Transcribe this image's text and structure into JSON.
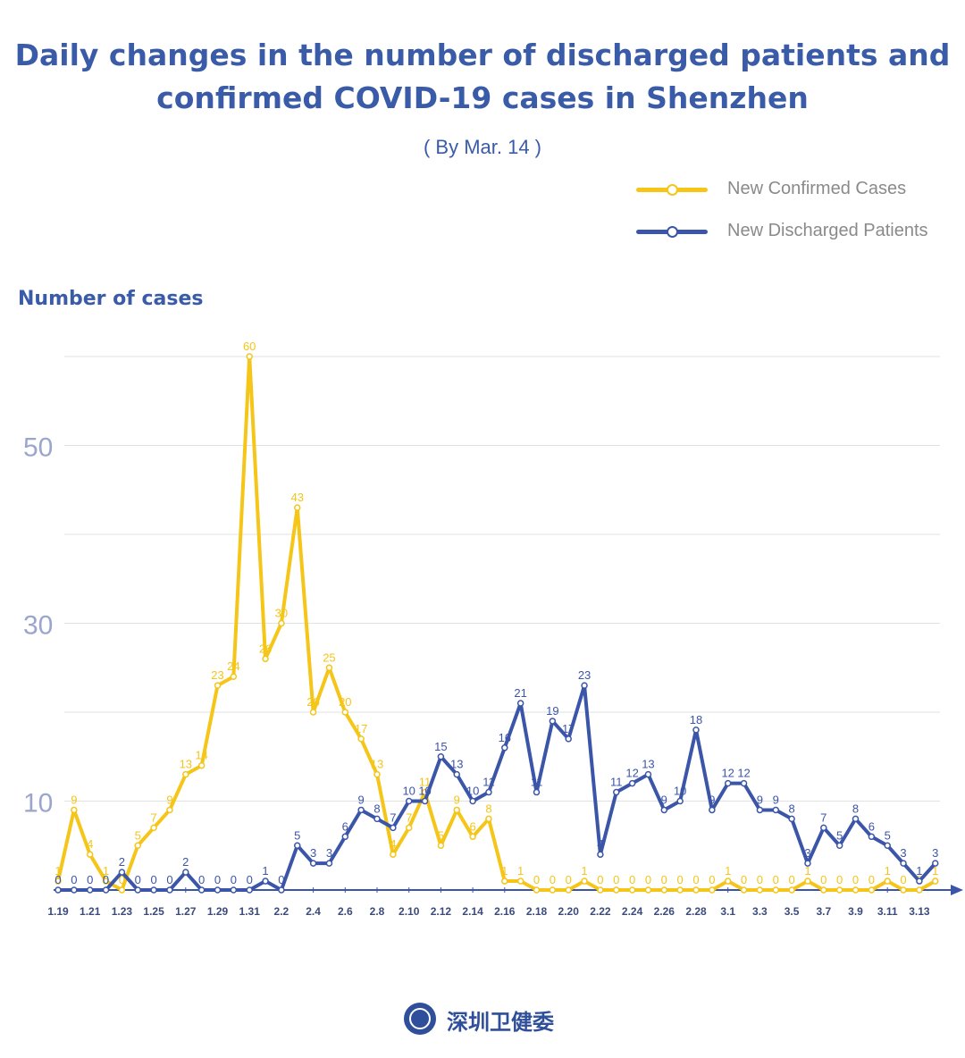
{
  "title_line1": "Daily changes in the number of discharged patients and",
  "title_line2": "confirmed COVID-19 cases in Shenzhen",
  "subtitle": "( By Mar. 14 )",
  "footer_text": "深圳卫健委",
  "colors": {
    "confirmed": "#f5c518",
    "discharged": "#3b55a8",
    "title": "#3a5ba8",
    "ytick": "#9aa6cc",
    "grid": "#e2e2e2"
  },
  "chart_data": {
    "type": "line",
    "ylabel": "Number of cases",
    "xlabel": "",
    "ylim": [
      0,
      60
    ],
    "y_ticks_shown": [
      10,
      30,
      50
    ],
    "grid": true,
    "legend_position": "top-right",
    "x": [
      "1.19",
      "1.20",
      "1.21",
      "1.22",
      "1.23",
      "1.24",
      "1.25",
      "1.26",
      "1.27",
      "1.28",
      "1.29",
      "1.30",
      "1.31",
      "2.1",
      "2.2",
      "2.3",
      "2.4",
      "2.5",
      "2.6",
      "2.7",
      "2.8",
      "2.9",
      "2.10",
      "2.11",
      "2.12",
      "2.13",
      "2.14",
      "2.15",
      "2.16",
      "2.17",
      "2.18",
      "2.19",
      "2.20",
      "2.21",
      "2.22",
      "2.23",
      "2.24",
      "2.25",
      "2.26",
      "2.27",
      "2.28",
      "2.29",
      "3.1",
      "3.2",
      "3.3",
      "3.4",
      "3.5",
      "3.6",
      "3.7",
      "3.8",
      "3.9",
      "3.10",
      "3.11",
      "3.12",
      "3.13",
      "3.14"
    ],
    "x_tick_labels": [
      "1.19",
      "1.21",
      "1.23",
      "1.25",
      "1.27",
      "1.29",
      "1.31",
      "2.2",
      "2.4",
      "2.6",
      "2.8",
      "2.10",
      "2.12",
      "2.14",
      "2.16",
      "2.18",
      "2.20",
      "2.22",
      "2.24",
      "2.26",
      "2.28",
      "3.1",
      "3.3",
      "3.5",
      "3.7",
      "3.9",
      "3.11",
      "3.13"
    ],
    "series": [
      {
        "name": "New Confirmed Cases",
        "values": [
          1,
          9,
          4,
          1,
          0,
          5,
          7,
          9,
          13,
          14,
          23,
          24,
          60,
          26,
          30,
          43,
          20,
          25,
          20,
          17,
          13,
          4,
          7,
          11,
          5,
          9,
          6,
          8,
          1,
          1,
          0,
          0,
          0,
          1,
          0,
          0,
          0,
          0,
          0,
          0,
          0,
          0,
          1,
          0,
          0,
          0,
          0,
          1,
          0,
          0,
          0,
          0,
          1,
          0,
          0,
          1
        ]
      },
      {
        "name": "New Discharged Patients",
        "values": [
          0,
          0,
          0,
          0,
          2,
          0,
          0,
          0,
          2,
          0,
          0,
          0,
          0,
          1,
          0,
          5,
          3,
          3,
          6,
          9,
          8,
          7,
          10,
          10,
          15,
          13,
          10,
          11,
          16,
          21,
          11,
          19,
          17,
          23,
          4,
          11,
          12,
          13,
          9,
          10,
          18,
          9,
          12,
          12,
          9,
          9,
          8,
          3,
          7,
          5,
          8,
          6,
          5,
          3,
          1,
          3
        ]
      }
    ]
  }
}
